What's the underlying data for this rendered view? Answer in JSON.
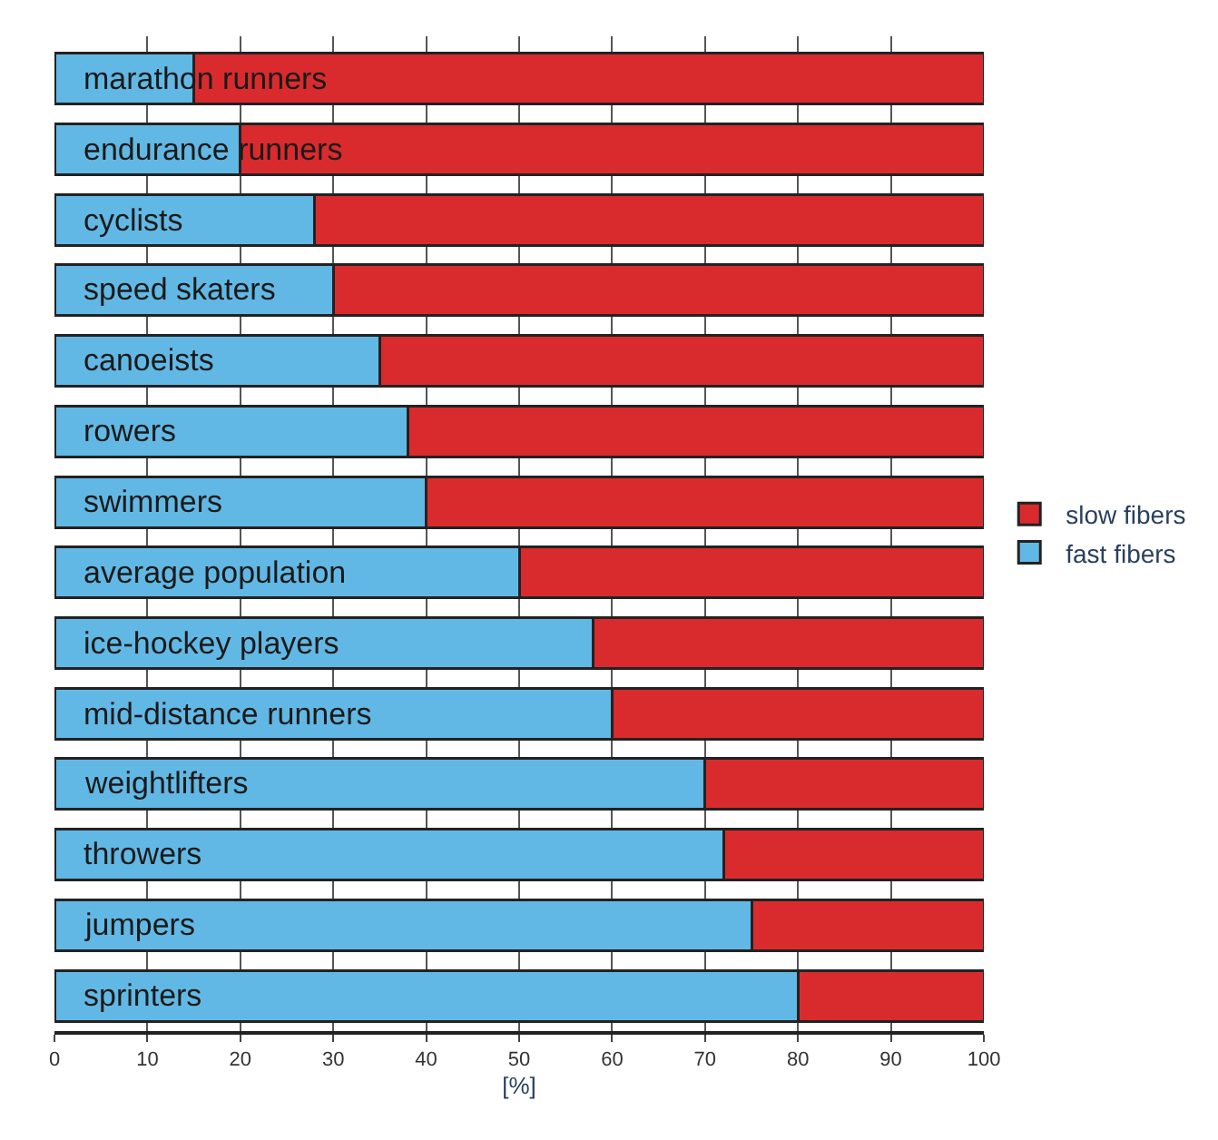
{
  "chart_data": {
    "type": "bar",
    "orientation": "horizontal",
    "stacked": true,
    "xlabel": "[%]",
    "categories": [
      "marathon runners",
      "endurance runners",
      "cyclists",
      "speed skaters",
      "canoeists",
      "rowers",
      "swimmers",
      "average population",
      "ice-hockey players",
      "mid-distance runners",
      "weightlifters",
      "throwers",
      "jumpers",
      "sprinters"
    ],
    "series": [
      {
        "name": "fast fibers",
        "color": "#62b8e4",
        "values": [
          15,
          20,
          28,
          30,
          35,
          38,
          40,
          50,
          58,
          60,
          70,
          72,
          75,
          80
        ]
      },
      {
        "name": "slow fibers",
        "color": "#d92b2d",
        "values": [
          85,
          80,
          72,
          70,
          65,
          62,
          60,
          50,
          42,
          40,
          30,
          28,
          25,
          20
        ]
      }
    ],
    "xlim": [
      0,
      100
    ],
    "xticks": [
      0,
      10,
      20,
      30,
      40,
      50,
      60,
      70,
      80,
      90,
      100
    ],
    "grid": "x",
    "legend": "right"
  }
}
